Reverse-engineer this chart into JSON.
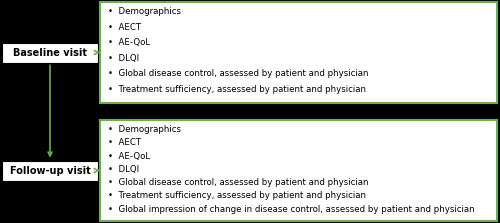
{
  "background_color": "#000000",
  "box_fill_color": "#ffffff",
  "box_border_color": "#6ab04c",
  "box_text_color": "#000000",
  "label_fill_color": "#ffffff",
  "label_border_color": "#000000",
  "arrow_color": "#6ab04c",
  "baseline_label": "Baseline visit",
  "followup_label": "Follow-up visit",
  "baseline_items": [
    "Demographics",
    "AECT",
    "AE-QoL",
    "DLQI",
    "Global disease control, assessed by patient and physician",
    "Treatment sufficiency, assessed by patient and physician"
  ],
  "followup_items": [
    "Demographics",
    "AECT",
    "AE-QoL",
    "DLQI",
    "Global disease control, assessed by patient and physician",
    "Treatment sufficiency, assessed by patient and physician",
    "Global impression of change in disease control, assessed by patient and physician"
  ],
  "font_size": 6.2,
  "label_font_size": 7.0,
  "figsize": [
    5.0,
    2.23
  ],
  "dpi": 100
}
